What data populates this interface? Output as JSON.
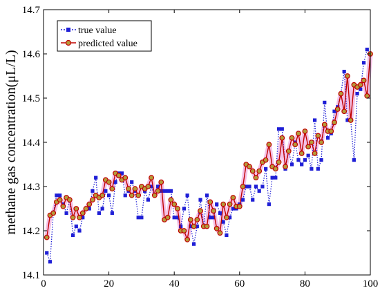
{
  "colors": {
    "true_value": "#1f1fd6",
    "predicted_value": "#c00000",
    "predicted_marker_fill": "#b59a3a",
    "halo": "#f2b6e2"
  },
  "chart_data": {
    "type": "line",
    "title": "",
    "xlabel": "",
    "ylabel": "methane gas concentration(μL/L)",
    "xlim": [
      0,
      100
    ],
    "ylim": [
      14.1,
      14.7
    ],
    "xticks": [
      0,
      20,
      40,
      60,
      80,
      100
    ],
    "yticks": [
      14.1,
      14.2,
      14.3,
      14.4,
      14.5,
      14.6,
      14.7
    ],
    "xtick_labels": [
      "0",
      "20",
      "40",
      "60",
      "80",
      "100"
    ],
    "ytick_labels": [
      "14.1",
      "14.2",
      "14.3",
      "14.4",
      "14.5",
      "14.6",
      "14.7"
    ],
    "grid": false,
    "legend_position": "top-left",
    "x": [
      1,
      2,
      3,
      4,
      5,
      6,
      7,
      8,
      9,
      10,
      11,
      12,
      13,
      14,
      15,
      16,
      17,
      18,
      19,
      20,
      21,
      22,
      23,
      24,
      25,
      26,
      27,
      28,
      29,
      30,
      31,
      32,
      33,
      34,
      35,
      36,
      37,
      38,
      39,
      40,
      41,
      42,
      43,
      44,
      45,
      46,
      47,
      48,
      49,
      50,
      51,
      52,
      53,
      54,
      55,
      56,
      57,
      58,
      59,
      60,
      61,
      62,
      63,
      64,
      65,
      66,
      67,
      68,
      69,
      70,
      71,
      72,
      73,
      74,
      75,
      76,
      77,
      78,
      79,
      80,
      81,
      82,
      83,
      84,
      85,
      86,
      87,
      88,
      89,
      90,
      91,
      92,
      93,
      94,
      95,
      96,
      97,
      98,
      99,
      100
    ],
    "series": [
      {
        "name": "true value",
        "style": "dotted-square",
        "values": [
          14.15,
          14.13,
          14.24,
          14.28,
          14.28,
          14.26,
          14.24,
          14.27,
          14.19,
          14.21,
          14.2,
          14.23,
          14.25,
          14.25,
          14.29,
          14.32,
          14.24,
          14.25,
          14.29,
          14.28,
          14.24,
          14.31,
          14.33,
          14.33,
          14.28,
          14.29,
          14.31,
          14.29,
          14.23,
          14.23,
          14.29,
          14.27,
          14.3,
          14.28,
          14.3,
          14.29,
          14.29,
          14.29,
          14.29,
          14.23,
          14.23,
          14.21,
          14.25,
          14.28,
          14.21,
          14.17,
          14.21,
          14.27,
          14.21,
          14.28,
          14.23,
          14.23,
          14.26,
          14.24,
          14.22,
          14.19,
          14.23,
          14.25,
          14.25,
          14.26,
          14.27,
          14.3,
          14.3,
          14.27,
          14.3,
          14.29,
          14.3,
          14.34,
          14.26,
          14.32,
          14.32,
          14.43,
          14.43,
          14.34,
          14.38,
          14.35,
          14.4,
          14.36,
          14.35,
          14.36,
          14.37,
          14.34,
          14.45,
          14.34,
          14.36,
          14.49,
          14.41,
          14.42,
          14.47,
          14.48,
          14.51,
          14.56,
          14.45,
          14.45,
          14.36,
          14.51,
          14.52,
          14.58,
          14.61,
          14.6
        ]
      },
      {
        "name": "predicted value",
        "style": "solid-circle",
        "values": [
          14.185,
          14.235,
          14.24,
          14.265,
          14.27,
          14.255,
          14.275,
          14.27,
          14.23,
          14.25,
          14.23,
          14.24,
          14.25,
          14.26,
          14.27,
          14.28,
          14.275,
          14.28,
          14.315,
          14.31,
          14.295,
          14.33,
          14.325,
          14.315,
          14.32,
          14.295,
          14.28,
          14.295,
          14.28,
          14.3,
          14.295,
          14.3,
          14.32,
          14.28,
          14.29,
          14.31,
          14.225,
          14.23,
          14.27,
          14.26,
          14.25,
          14.2,
          14.2,
          14.18,
          14.225,
          14.21,
          14.225,
          14.245,
          14.21,
          14.21,
          14.265,
          14.245,
          14.205,
          14.195,
          14.26,
          14.23,
          14.26,
          14.275,
          14.255,
          14.255,
          14.3,
          14.35,
          14.345,
          14.335,
          14.32,
          14.335,
          14.355,
          14.36,
          14.395,
          14.345,
          14.34,
          14.355,
          14.41,
          14.345,
          14.38,
          14.41,
          14.395,
          14.42,
          14.375,
          14.425,
          14.39,
          14.4,
          14.375,
          14.415,
          14.4,
          14.44,
          14.425,
          14.425,
          14.445,
          14.475,
          14.51,
          14.47,
          14.55,
          14.45,
          14.53,
          14.525,
          14.53,
          14.54,
          14.505,
          14.6
        ]
      }
    ]
  }
}
